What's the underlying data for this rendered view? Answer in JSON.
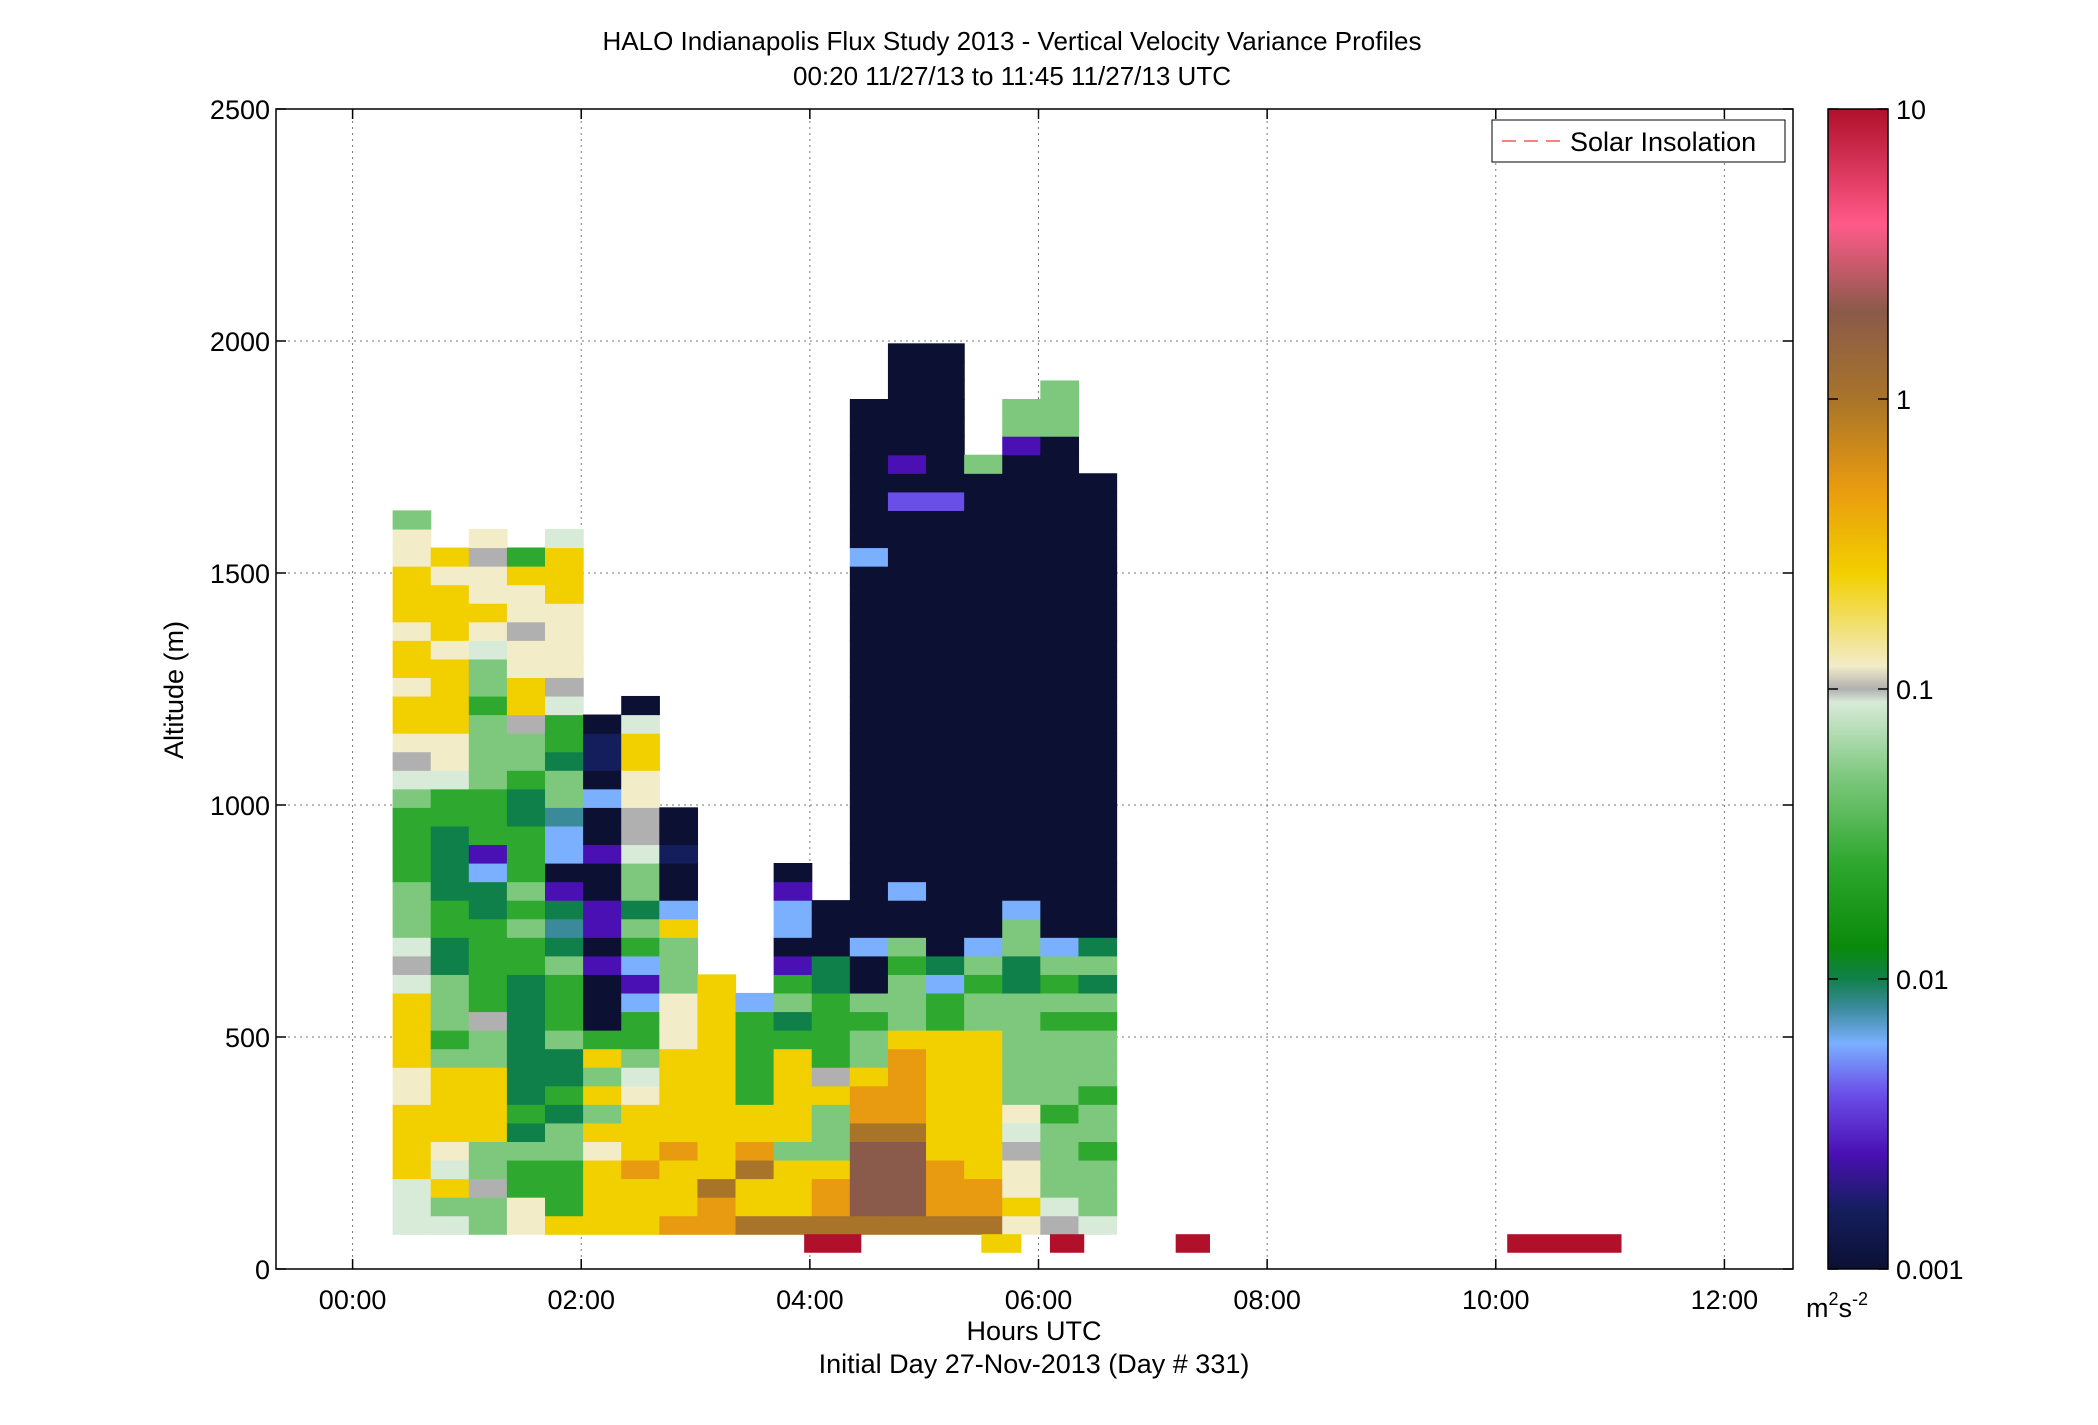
{
  "chart_data": {
    "type": "heatmap",
    "title": "HALO Indianapolis Flux Study 2013 - Vertical Velocity Variance Profiles",
    "subtitle": "00:20 11/27/13 to 11:45 11/27/13  UTC",
    "xlabel": "Hours UTC",
    "xlabel2": "Initial Day 27-Nov-2013 (Day # 331)",
    "ylabel": "Altitude (m)",
    "xlim_hours": [
      -0.67,
      12.6
    ],
    "ylim": [
      0,
      2500
    ],
    "x_ticks": [
      {
        "value": 0,
        "label": "00:00"
      },
      {
        "value": 2,
        "label": "02:00"
      },
      {
        "value": 4,
        "label": "04:00"
      },
      {
        "value": 6,
        "label": "06:00"
      },
      {
        "value": 8,
        "label": "08:00"
      },
      {
        "value": 10,
        "label": "10:00"
      },
      {
        "value": 12,
        "label": "12:00"
      }
    ],
    "y_ticks": [
      {
        "value": 0,
        "label": "0"
      },
      {
        "value": 500,
        "label": "500"
      },
      {
        "value": 1000,
        "label": "1000"
      },
      {
        "value": 1500,
        "label": "1500"
      },
      {
        "value": 2000,
        "label": "2000"
      },
      {
        "value": 2500,
        "label": "2500"
      }
    ],
    "grid": true,
    "legend": {
      "position": "top-right",
      "entries": [
        "Solar Insolation"
      ],
      "color": "#ff8080"
    },
    "colorbar": {
      "scale": "log",
      "range": [
        0.001,
        10
      ],
      "ticks": [
        {
          "value": 0.001,
          "label": "0.001"
        },
        {
          "value": 0.01,
          "label": "0.01"
        },
        {
          "value": 0.1,
          "label": "0.1"
        },
        {
          "value": 1,
          "label": "1"
        },
        {
          "value": 10,
          "label": "10"
        }
      ],
      "unit": "m",
      "unit_sup1": "2",
      "unit_s": "s",
      "unit_sup2": "-2",
      "stops": [
        {
          "value": 0.001,
          "color": "#0c1033"
        },
        {
          "value": 0.0016,
          "color": "#141e5c"
        },
        {
          "value": 0.0025,
          "color": "#4a10b4"
        },
        {
          "value": 0.004,
          "color": "#6a4ee8"
        },
        {
          "value": 0.006,
          "color": "#7ab0ff"
        },
        {
          "value": 0.008,
          "color": "#3a8a9a"
        },
        {
          "value": 0.01,
          "color": "#10804a"
        },
        {
          "value": 0.013,
          "color": "#0a8a0a"
        },
        {
          "value": 0.025,
          "color": "#2ea82e"
        },
        {
          "value": 0.05,
          "color": "#7ec87e"
        },
        {
          "value": 0.09,
          "color": "#d8ead8"
        },
        {
          "value": 0.1,
          "color": "#b0b0b0"
        },
        {
          "value": 0.12,
          "color": "#f2ecc8"
        },
        {
          "value": 0.25,
          "color": "#f2d000"
        },
        {
          "value": 0.5,
          "color": "#e89a10"
        },
        {
          "value": 1,
          "color": "#a8742a"
        },
        {
          "value": 2,
          "color": "#8a5a4a"
        },
        {
          "value": 4,
          "color": "#ff5a8a"
        },
        {
          "value": 10,
          "color": "#b0102a"
        }
      ]
    },
    "solar_insolation_bars": [
      {
        "start_hour": 3.95,
        "end_hour": 4.45
      },
      {
        "start_hour": 6.1,
        "end_hour": 6.4
      },
      {
        "start_hour": 7.2,
        "end_hour": 7.5
      },
      {
        "start_hour": 10.1,
        "end_hour": 11.1
      }
    ],
    "solar_insolation_color": "#b0102a",
    "surface_marker": {
      "start_hour": 5.5,
      "end_hour": 5.85,
      "color": "#f2d000"
    },
    "heatmap": {
      "time_start_hour": 0.35,
      "time_step_hour": 0.3333,
      "alt_start_m": 75,
      "alt_step_m": 40,
      "note_code_map": "0=no data, 1=0.001,2=0.0016,3=0.0025,4=0.004,5=0.006,6=0.008,7=0.01,8=0.013,9=0.025,A=0.05,B=0.09,C=0.1,D=0.12,E=0.25,F=0.5,G=1,H=2",
      "columns": [
        "BBBEEEEDDEEEEBCBAAA9999ABCDEEDEEDEEEDDA",
        "BAEBDEEEEA9AAA7799777799BDDEEEEDEEEDE",
        "AACAAEEEEAAC999997753999AAAA9AABDEDDCD",
        "DD99A79777777799A9A999779AACEEDDCDDE9",
        "E999AA7977A999A76731556AA799BCDDDDEEEB",
        "EEEEDEAEAE911131331131151221",
        "EEEFEEEDBA995359A7AABCCDDEEB1",
        "FEEEFEEEEEDDDAAAE511211",
        "FFGEEEEEEEEEEE",
        "GEEGFEE999995",
        "GEEEAEEEEE97A9315531",
        "GFFEAAAEC999977111",
        "GHHHHGFFEAA9A11511111111111111111111511111111",
        "GHHHHGFFFFEAAA9A11511111111111111111111413111111",
        "GFFFEEEEEEE9957111111111111111111111111411111111",
        "GFFEEEEEEEEAA9A51111111111111111111111111A",
        "DEDDCBDAAAAAA77AA51111111111111111111111113AA",
        "CBAAAA9AAAA9A9A5111111111111111111111111111AAA",
        "BAAA9AA9AAA9A7A71111111111111111111111111"
      ]
    }
  }
}
